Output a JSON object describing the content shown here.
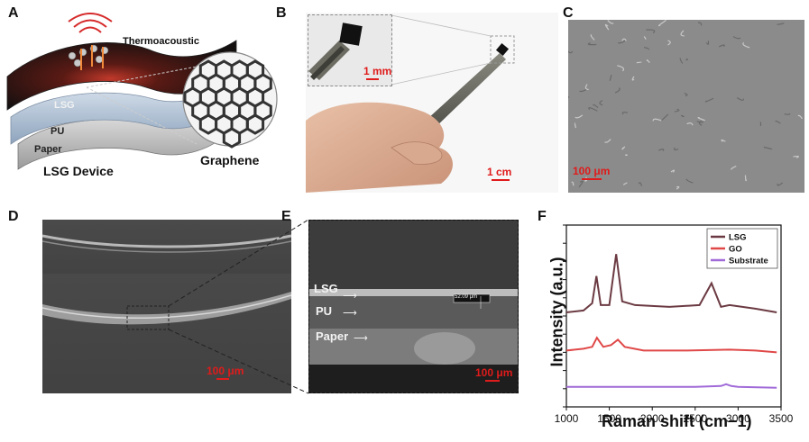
{
  "panels": {
    "a": {
      "letter": "A",
      "thermo": "Thermoacoustic",
      "lsg": "LSG",
      "pu": "PU",
      "paper": "Paper",
      "device": "LSG Device",
      "graphene": "Graphene"
    },
    "b": {
      "letter": "B",
      "scale_inset": "1 mm",
      "scale_main": "1 cm"
    },
    "c": {
      "letter": "C",
      "scale": "100 μm"
    },
    "d": {
      "letter": "D",
      "scale": "100 μm"
    },
    "e": {
      "letter": "E",
      "lsg": "LSG",
      "pu": "PU",
      "paper": "Paper",
      "scale": "100 μm",
      "measure": "52.09 μm"
    },
    "f": {
      "letter": "F"
    }
  },
  "colors": {
    "scale_red": "#e01b1b",
    "lsg": "#6b3a42",
    "go": "#e04848",
    "substrate": "#a06ad8"
  },
  "chart_data": {
    "type": "line",
    "xlabel": "Raman shift (cm−1)",
    "ylabel": "Intensity (a.u.)",
    "xlim": [
      1000,
      3500
    ],
    "xticks": [
      1000,
      1500,
      2000,
      2500,
      3000,
      3500
    ],
    "legend_position": "top-right",
    "series": [
      {
        "name": "LSG",
        "color": "#6b3a42",
        "x": [
          1000,
          1200,
          1300,
          1350,
          1400,
          1500,
          1580,
          1650,
          1800,
          2200,
          2550,
          2690,
          2800,
          2900,
          3200,
          3450
        ],
        "y": [
          0.52,
          0.53,
          0.57,
          0.72,
          0.56,
          0.56,
          0.84,
          0.58,
          0.56,
          0.55,
          0.56,
          0.68,
          0.55,
          0.56,
          0.54,
          0.52
        ]
      },
      {
        "name": "GO",
        "color": "#e04848",
        "x": [
          1000,
          1200,
          1300,
          1355,
          1430,
          1520,
          1600,
          1680,
          1900,
          2400,
          2900,
          3200,
          3450
        ],
        "y": [
          0.31,
          0.32,
          0.33,
          0.38,
          0.33,
          0.34,
          0.37,
          0.33,
          0.31,
          0.31,
          0.315,
          0.31,
          0.3
        ]
      },
      {
        "name": "Substrate",
        "color": "#a06ad8",
        "x": [
          1000,
          1500,
          2000,
          2500,
          2800,
          2860,
          2920,
          3000,
          3450
        ],
        "y": [
          0.11,
          0.11,
          0.11,
          0.11,
          0.115,
          0.125,
          0.115,
          0.11,
          0.105
        ]
      }
    ]
  }
}
